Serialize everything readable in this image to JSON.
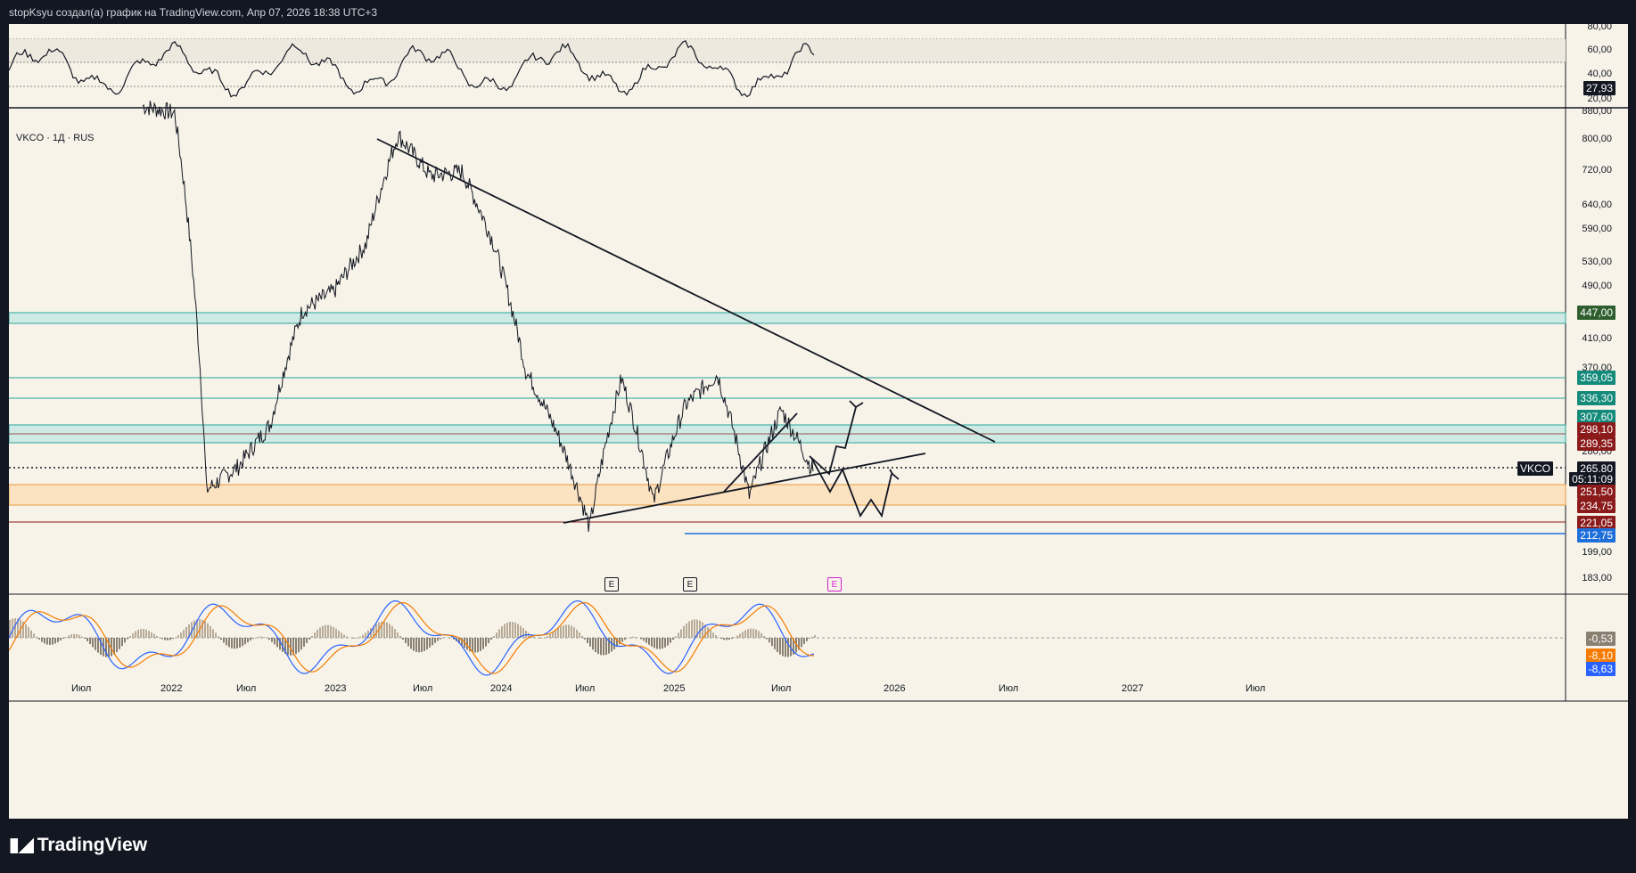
{
  "header": {
    "title": "stopKsyu создал(а) график на TradingView.com, Апр 07, 2026 18:38 UTC+3"
  },
  "symbol": "VKCO · 1Д · RUS",
  "footer": {
    "brand": "TradingView"
  },
  "colors": {
    "background": "#f7f3e9",
    "frame": "#131722",
    "teal": "#26a69a",
    "dark_red": "#8b1a1a",
    "orange_zone": "#fbd9a8",
    "blue": "#1565c0"
  },
  "price_axis": {
    "ticks": [
      "880,00",
      "800,00",
      "720,00",
      "640,00",
      "590,00",
      "530,00",
      "490,00",
      "410,00",
      "370,00",
      "280,00",
      "199,00",
      "183,00"
    ]
  },
  "rsi_axis": {
    "ticks": [
      "80,00",
      "60,00",
      "40,00",
      "20,00"
    ],
    "current": "27,93"
  },
  "price_tags": [
    {
      "value": "447,00",
      "color": "#2e5e2e"
    },
    {
      "value": "359,05",
      "color": "#138a7a"
    },
    {
      "value": "336,30",
      "color": "#138a7a"
    },
    {
      "value": "307,60",
      "color": "#138a7a"
    },
    {
      "value": "298,10",
      "color": "#8b1a1a"
    },
    {
      "value": "289,35",
      "color": "#8b1a1a"
    },
    {
      "value": "265,80",
      "color": "#131722"
    },
    {
      "value": "05:11:09",
      "color": "#131722"
    },
    {
      "value": "251,50",
      "color": "#8b1a1a"
    },
    {
      "value": "234,75",
      "color": "#8b1a1a"
    },
    {
      "value": "221,05",
      "color": "#8b1a1a"
    },
    {
      "value": "212,75",
      "color": "#1e6fd9"
    }
  ],
  "vkco_tag": "VKCO",
  "macd_tags": [
    {
      "value": "-0,53",
      "color": "#8a8072"
    },
    {
      "value": "-8,10",
      "color": "#f57c00"
    },
    {
      "value": "-8,63",
      "color": "#2962ff"
    }
  ],
  "time_axis": [
    "Июл",
    "2022",
    "Июл",
    "2023",
    "Июл",
    "2024",
    "Июл",
    "2025",
    "Июл",
    "2026",
    "Июл",
    "2027",
    "Июл"
  ],
  "earnings_marks": [
    "E",
    "E",
    "E"
  ],
  "chart_data": {
    "type": "line",
    "title": "VKCO · 1Д · RUS",
    "x": [
      "2021-10",
      "2022-01",
      "2022-04",
      "2022-07",
      "2022-10",
      "2023-01",
      "2023-04",
      "2023-07",
      "2023-09",
      "2023-12",
      "2024-02",
      "2024-05",
      "2024-08",
      "2024-10",
      "2024-12",
      "2025-02",
      "2025-04",
      "2025-06",
      "2025-08",
      "2025-10",
      "2026-01",
      "2026-04"
    ],
    "series": [
      {
        "values": [
          880,
          860,
          250,
          270,
          310,
          450,
          480,
          560,
          800,
          700,
          710,
          560,
          370,
          300,
          221,
          360,
          240,
          330,
          365,
          245,
          325,
          265.8
        ]
      }
    ],
    "levels": [
      447.0,
      359.05,
      336.3,
      307.6,
      298.1,
      289.35,
      265.8,
      251.5,
      234.75,
      221.05,
      212.75
    ],
    "ylim": [
      183,
      880
    ],
    "log_scale": true,
    "rsi_current": 27.93,
    "macd_current": {
      "histogram": -0.53,
      "signal": -8.1,
      "macd": -8.63
    }
  }
}
